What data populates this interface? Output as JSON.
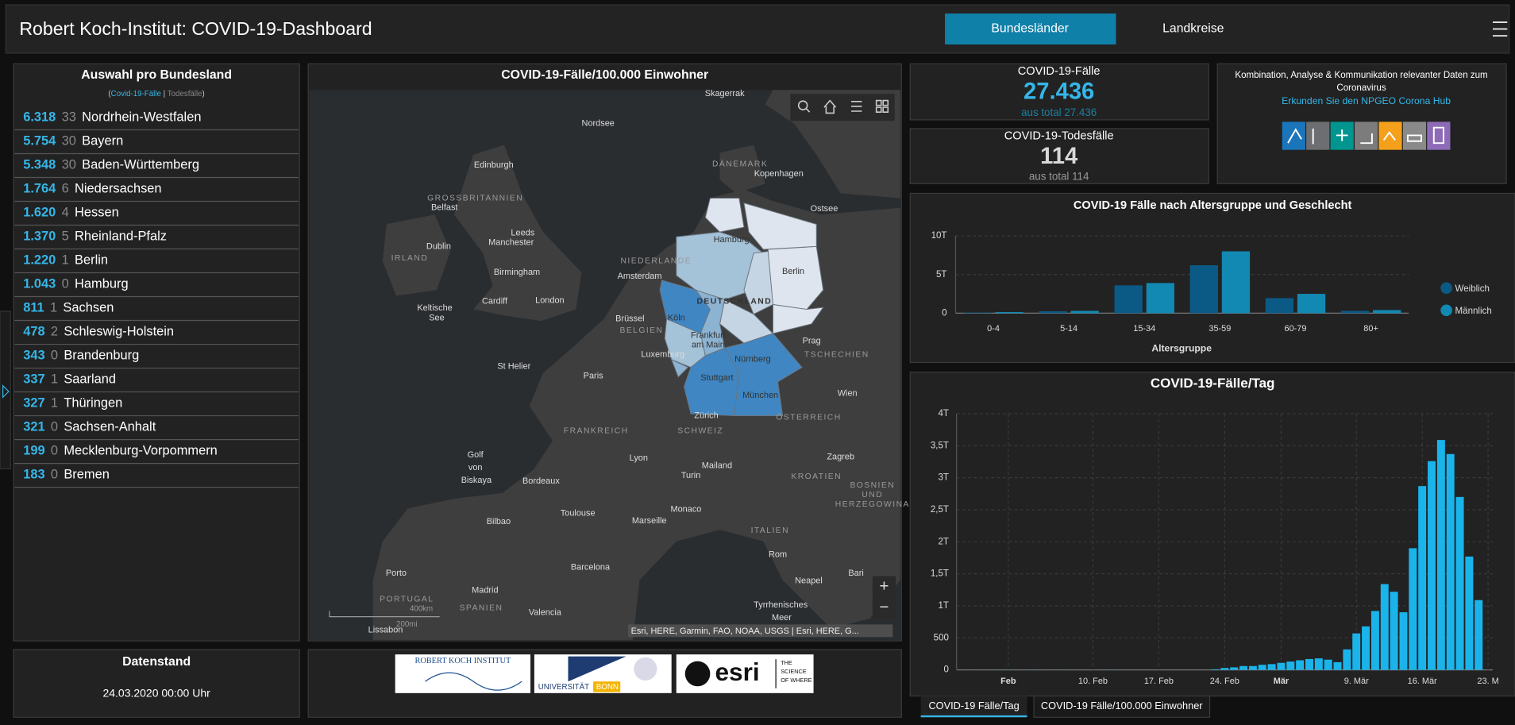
{
  "header": {
    "title": "Robert Koch-Institut: COVID-19-Dashboard",
    "tabs": [
      "Bundesländer",
      "Landkreise"
    ]
  },
  "list_panel": {
    "title": "Auswahl pro Bundesland",
    "toggle": {
      "open": "(",
      "cases": "Covid-19-Fälle",
      "sep": " | ",
      "deaths": "Todesfälle",
      "close": ")"
    },
    "rows": [
      {
        "cases": "6.318",
        "deaths": "33",
        "name": "Nordrhein-Westfalen"
      },
      {
        "cases": "5.754",
        "deaths": "30",
        "name": "Bayern"
      },
      {
        "cases": "5.348",
        "deaths": "30",
        "name": "Baden-Württemberg"
      },
      {
        "cases": "1.764",
        "deaths": "6",
        "name": "Niedersachsen"
      },
      {
        "cases": "1.620",
        "deaths": "4",
        "name": "Hessen"
      },
      {
        "cases": "1.370",
        "deaths": "5",
        "name": "Rheinland-Pfalz"
      },
      {
        "cases": "1.220",
        "deaths": "1",
        "name": "Berlin"
      },
      {
        "cases": "1.043",
        "deaths": "0",
        "name": "Hamburg"
      },
      {
        "cases": "811",
        "deaths": "1",
        "name": "Sachsen"
      },
      {
        "cases": "478",
        "deaths": "2",
        "name": "Schleswig-Holstein"
      },
      {
        "cases": "343",
        "deaths": "0",
        "name": "Brandenburg"
      },
      {
        "cases": "337",
        "deaths": "1",
        "name": "Saarland"
      },
      {
        "cases": "327",
        "deaths": "1",
        "name": "Thüringen"
      },
      {
        "cases": "321",
        "deaths": "0",
        "name": "Sachsen-Anhalt"
      },
      {
        "cases": "199",
        "deaths": "0",
        "name": "Mecklenburg-Vorpommern"
      },
      {
        "cases": "183",
        "deaths": "0",
        "name": "Bremen"
      }
    ]
  },
  "map": {
    "title": "COVID-19-Fälle/100.000 Einwohner",
    "labels": [
      "Skagerrak",
      "Nordsee",
      "Edinburgh",
      "DÄNEMARK",
      "Kopenhagen",
      "GROSSBRITANNIEN",
      "Belfast",
      "Ostsee",
      "Dublin",
      "Leeds",
      "Manchester",
      "IRLAND",
      "Hamburg",
      "Berlin",
      "NIEDERLANDE",
      "Amsterdam",
      "Birmingham",
      "Cardiff",
      "London",
      "DEUTSCHLAND",
      "Keltische",
      "See",
      "Brüssel",
      "Köln",
      "BELGIEN",
      "Prag",
      "TSCHECHIEN",
      "Frankfurt",
      "am Main",
      "Luxemburg",
      "Nürnberg",
      "St Helier",
      "Paris",
      "Stuttgart",
      "Wien",
      "München",
      "Zürich",
      "FRANKREICH",
      "SCHWEIZ",
      "ÖSTERREICH",
      "Golf",
      "von",
      "Biskaya",
      "Lyon",
      "Zagreb",
      "Mailand",
      "Turin",
      "Bordeaux",
      "KROATIEN",
      "BOSNIEN",
      "UND",
      "HERZEGOWINA",
      "Toulouse",
      "Monaco",
      "Marseille",
      "Bilbao",
      "ITALIEN",
      "Rom",
      "Porto",
      "Barcelona",
      "Neapel",
      "Bari",
      "Madrid",
      "PORTUGAL",
      "Tyrrhenisches",
      "Meer",
      "SPANIEN",
      "Valencia",
      "Lissabon"
    ],
    "scale": [
      "400km",
      "200mi"
    ],
    "attribution": "Esri, HERE, Garmin, FAO, NOAA, USGS | Esri, HERE, G...",
    "zoom": [
      "+",
      "−"
    ]
  },
  "kpi_cases": {
    "title": "COVID-19-Fälle",
    "value": "27.436",
    "sub": "aus total 27.436"
  },
  "kpi_deaths": {
    "title": "COVID-19-Todesfälle",
    "value": "114",
    "sub": "aus total 114"
  },
  "hub": {
    "lines": [
      "Kombination, Analyse & Kommunikation relevanter Daten zum",
      "Coronavirus"
    ],
    "link": "Erkunden Sie den NPGEO Corona Hub"
  },
  "age_chart": {
    "type": "bar",
    "title": "COVID-19 Fälle nach Altersgruppe und Geschlecht",
    "x_label": "Altersgruppe",
    "categories": [
      "0-4",
      "5-14",
      "15-34",
      "35-59",
      "60-79",
      "80+"
    ],
    "series": [
      {
        "name": "Weiblich",
        "color": "#0b5a86",
        "values": [
          80,
          250,
          3600,
          6200,
          1950,
          300
        ]
      },
      {
        "name": "Männlich",
        "color": "#1289b3",
        "values": [
          150,
          300,
          3900,
          8000,
          2500,
          400
        ]
      }
    ],
    "ylim": [
      0,
      10000
    ],
    "yticks": [
      0,
      {
        "value": 5000,
        "label": "5T"
      },
      {
        "value": 10000,
        "label": "10T"
      }
    ],
    "grid": true,
    "legend": "right"
  },
  "daily_chart": {
    "type": "bar",
    "title": "COVID-19-Fälle/Tag",
    "color": "#1ab4eb",
    "categories": [
      null,
      null,
      null,
      null,
      null,
      "Feb",
      null,
      null,
      null,
      null,
      null,
      null,
      null,
      null,
      "10. Feb",
      null,
      null,
      null,
      null,
      null,
      null,
      "17. Feb",
      null,
      null,
      null,
      null,
      null,
      null,
      "24. Feb",
      null,
      null,
      null,
      null,
      null,
      "Mär",
      null,
      null,
      null,
      null,
      null,
      null,
      null,
      "9. Mär",
      null,
      null,
      null,
      null,
      null,
      null,
      "16. Mär",
      null,
      null,
      null,
      null,
      null,
      null,
      "23. M"
    ],
    "values": [
      0,
      1,
      0,
      0,
      1,
      3,
      0,
      2,
      1,
      0,
      2,
      1,
      0,
      0,
      0,
      1,
      2,
      0,
      0,
      0,
      0,
      0,
      0,
      0,
      0,
      0,
      0,
      10,
      30,
      40,
      60,
      60,
      80,
      90,
      110,
      130,
      150,
      170,
      180,
      160,
      120,
      320,
      570,
      680,
      920,
      1340,
      1220,
      900,
      1900,
      2870,
      3260,
      3590,
      3370,
      2700,
      1770,
      1090,
      null
    ],
    "ylim": [
      0,
      4000
    ],
    "yticks": [
      0,
      500,
      {
        "value": 1000,
        "label": "1T"
      },
      {
        "value": 1500,
        "label": "1,5T"
      },
      {
        "value": 2000,
        "label": "2T"
      },
      {
        "value": 2500,
        "label": "2,5T"
      },
      {
        "value": 3000,
        "label": "3T"
      },
      {
        "value": 3500,
        "label": "3,5T"
      },
      {
        "value": 4000,
        "label": "4T"
      }
    ],
    "grid": true
  },
  "bottom_tabs": [
    "COVID-19 Fälle/Tag",
    "COVID-19 Fälle/100.000 Einwohner"
  ],
  "datenstand": {
    "title": "Datenstand",
    "value": "24.03.2020 00:00 Uhr"
  },
  "logos": [
    "ROBERT KOCH INSTITUT",
    "UNIVERSITÄT",
    "BONN",
    "esri",
    "THE",
    "SCIENCE",
    "OF WHERE"
  ]
}
